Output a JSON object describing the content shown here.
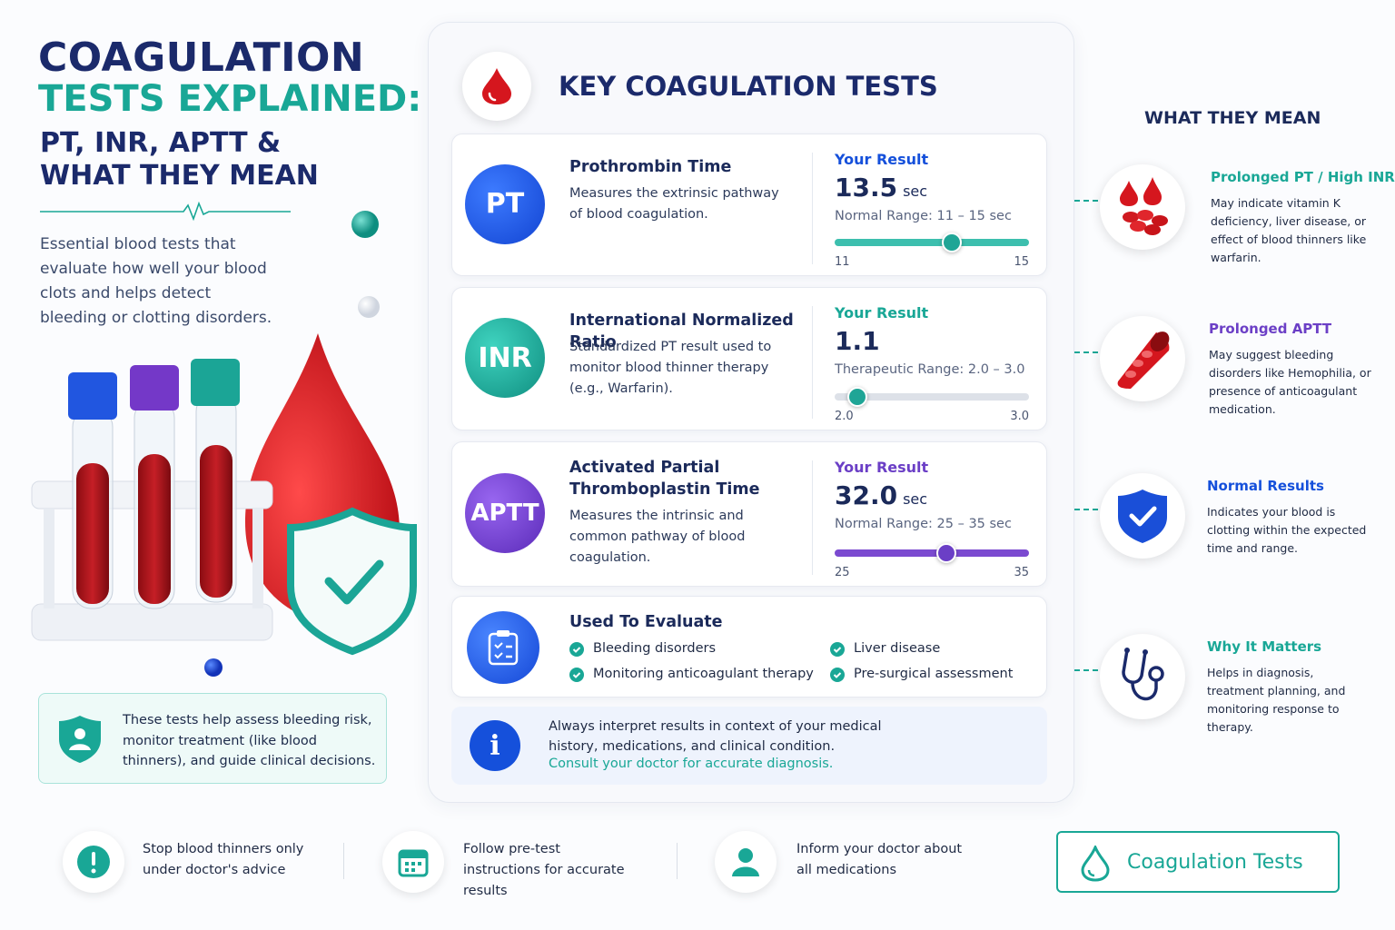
{
  "header": {
    "title_line1": "COAGULATION",
    "title_line2": "TESTS EXPLAINED:",
    "subtitle_line1": "PT, INR, APTT &",
    "subtitle_line2": "WHAT THEY MEAN",
    "intro": "Essential blood tests that evaluate how well your blood clots and helps detect bleeding or clotting disorders."
  },
  "left_note": "These tests help assess bleeding risk, monitor treatment (like blood thinners), and guide clinical decisions.",
  "panel": {
    "title": "KEY COAGULATION TESTS",
    "tests": [
      {
        "abbr": "PT",
        "name": "Prothrombin Time",
        "description": "Measures the extrinsic pathway of blood coagulation.",
        "result_label": "Your Result",
        "result": 13.5,
        "unit": "sec",
        "range_text": "Normal Range: 11 – 15 sec",
        "scale_min": 11,
        "scale_max": 15
      },
      {
        "abbr": "INR",
        "name": "International Normalized Ratio",
        "description": "Standardized PT result used to monitor blood thinner therapy (e.g., Warfarin).",
        "result_label": "Your Result",
        "result": 1.1,
        "range_text": "Therapeutic Range: 2.0 – 3.0",
        "scale_min": {
          "value": 2,
          "label": "2.0"
        },
        "scale_max": {
          "value": 3,
          "label": "3.0"
        }
      },
      {
        "abbr": "APTT",
        "name": "Activated Partial Thromboplastin Time",
        "description": "Measures the intrinsic and common pathway of blood coagulation.",
        "result_label": "Your Result",
        "result": {
          "value": 32,
          "label": "32.0"
        },
        "unit": "sec",
        "range_text": "Normal Range: 25 – 35 sec",
        "scale_min": 25,
        "scale_max": 35
      }
    ],
    "evaluate": {
      "title": "Used To Evaluate",
      "items": [
        "Bleeding disorders",
        "Liver disease",
        "Monitoring anticoagulant therapy",
        "Pre-surgical assessment"
      ]
    },
    "notice": {
      "text": "Always interpret results in context of your medical history, medications, and clinical condition.",
      "highlight": "Consult your doctor for accurate diagnosis."
    }
  },
  "meanings": {
    "title": "WHAT THEY MEAN",
    "items": [
      {
        "title": "Prolonged PT / High INR",
        "text": "May indicate vitamin K deficiency, liver disease, or effect of blood thinners like warfarin."
      },
      {
        "title": "Prolonged APTT",
        "text": "May suggest bleeding disorders like Hemophilia, or presence of anticoagulant medication."
      },
      {
        "title": "Normal Results",
        "text": "Indicates your blood is clotting within the expected time and range."
      },
      {
        "title": "Why It Matters",
        "text": "Helps in diagnosis, treatment planning, and monitoring response to therapy."
      }
    ]
  },
  "tips": [
    "Stop blood thinners only under doctor's advice",
    "Follow pre-test instructions for accurate results",
    "Inform your doctor about all medications"
  ],
  "badge": "Coagulation Tests"
}
